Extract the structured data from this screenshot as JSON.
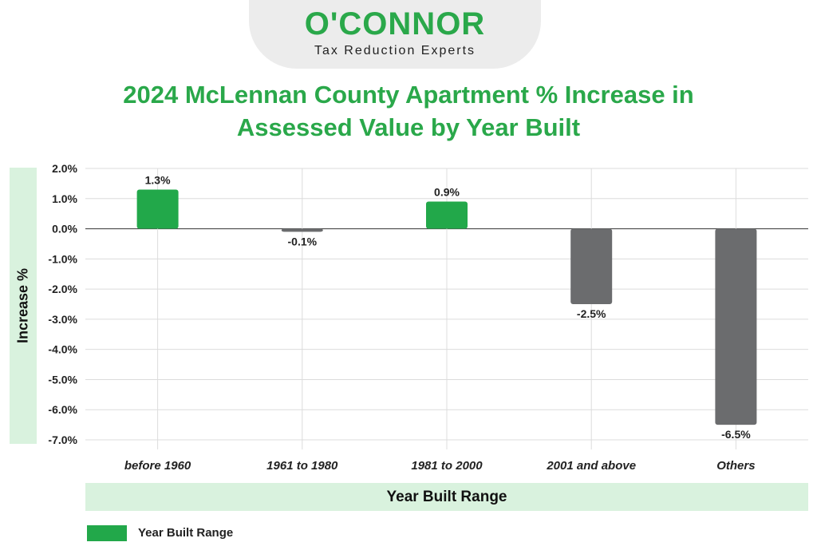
{
  "logo": {
    "name": "O'CONNOR",
    "tagline": "Tax Reduction Experts"
  },
  "chart_data": {
    "type": "bar",
    "title": "2024 McLennan County Apartment % Increase in Assessed Value by Year Built",
    "xlabel": "Year Built Range",
    "ylabel": "Increase %",
    "categories": [
      "before 1960",
      "1961 to 1980",
      "1981 to 2000",
      "2001 and above",
      "Others"
    ],
    "series": [
      {
        "name": "Year Built Range",
        "values": [
          1.3,
          -0.1,
          0.9,
          -2.5,
          -6.5
        ],
        "data_labels": [
          "1.3%",
          "-0.1%",
          "0.9%",
          "-2.5%",
          "-6.5%"
        ]
      }
    ],
    "yticks": [
      2.0,
      1.0,
      0.0,
      -1.0,
      -2.0,
      -3.0,
      -4.0,
      -5.0,
      -6.0,
      -7.0
    ],
    "ytick_labels": [
      "2.0%",
      "1.0%",
      "0.0%",
      "-1.0%",
      "-2.0%",
      "-3.0%",
      "-4.0%",
      "-5.0%",
      "-6.0%",
      "-7.0%"
    ],
    "ylim": [
      -7.0,
      2.0
    ],
    "grid": true,
    "legend_position": "bottom-left",
    "colors": {
      "positive": "#22a84a",
      "negative": "#6b6c6e"
    }
  }
}
